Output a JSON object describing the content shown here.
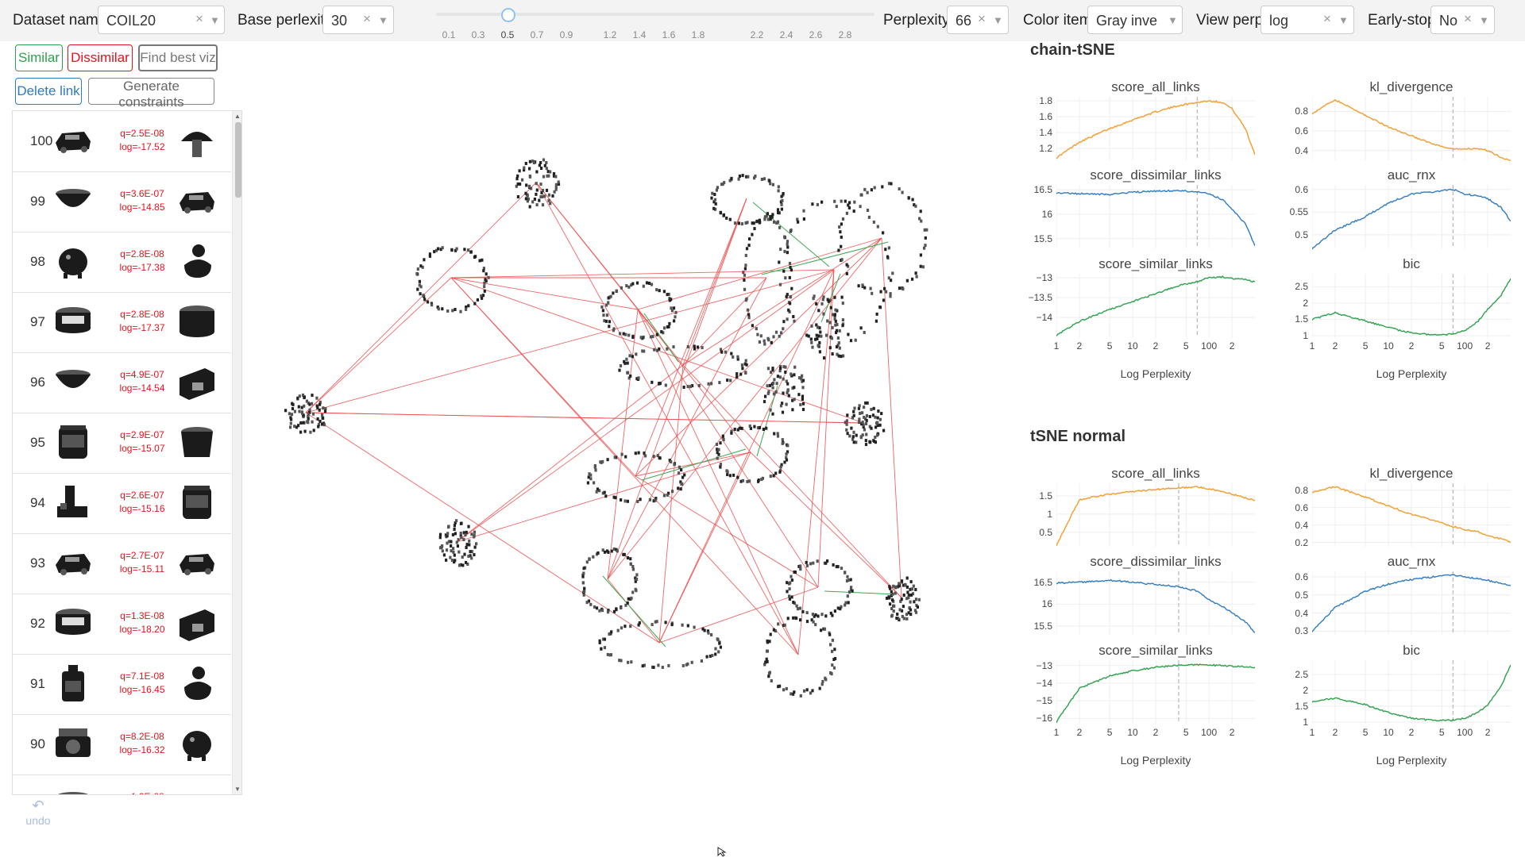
{
  "topbar": {
    "dataset_label": "Dataset name",
    "dataset_value": "COIL20",
    "base_perplexity_label": "Base perlexity",
    "base_perplexity_value": "30",
    "slider_ticks": [
      "0.1",
      "0.3",
      "0.5",
      "0.7",
      "0.9",
      "1.2",
      "1.4",
      "1.6",
      "1.8",
      "2.2",
      "2.4",
      "2.6",
      "2.8"
    ],
    "slider_value": 0.5,
    "perplexity_label": "Perplexity",
    "perplexity_value": "66",
    "color_item_label": "Color item",
    "color_item_value": "Gray invert",
    "view_perp_label": "View perp",
    "view_perp_value": "log",
    "early_stop_label": "Early-stop",
    "early_stop_value": "No",
    "clear_glyph": "×",
    "dropdown_glyph": "▼"
  },
  "buttons": {
    "similar": "Similar",
    "dissimilar": "Dissimilar",
    "find_best": "Find best viz",
    "delete_link": "Delete link",
    "generate": "Generate constraints"
  },
  "links": [
    {
      "id": "100",
      "q": "q=2.5E-08",
      "log": "log=-17.52",
      "left": "car-icon",
      "right": "mushroom-icon"
    },
    {
      "id": "99",
      "q": "q=3.6E-07",
      "log": "log=-14.85",
      "left": "bowl-icon",
      "right": "car-icon"
    },
    {
      "id": "98",
      "q": "q=2.8E-08",
      "log": "log=-17.38",
      "left": "piggy-bank-icon",
      "right": "duck-icon"
    },
    {
      "id": "97",
      "q": "q=2.8E-08",
      "log": "log=-17.37",
      "left": "cream-jar-icon",
      "right": "pot-icon"
    },
    {
      "id": "96",
      "q": "q=4.9E-07",
      "log": "log=-14.54",
      "left": "bowl-icon",
      "right": "box-icon"
    },
    {
      "id": "95",
      "q": "q=2.9E-07",
      "log": "log=-15.07",
      "left": "jar-icon",
      "right": "cup-icon"
    },
    {
      "id": "94",
      "q": "q=2.6E-07",
      "log": "log=-15.16",
      "left": "block-icon",
      "right": "jar-icon"
    },
    {
      "id": "93",
      "q": "q=2.7E-07",
      "log": "log=-15.11",
      "left": "car-icon",
      "right": "car-icon"
    },
    {
      "id": "92",
      "q": "q=1.3E-08",
      "log": "log=-18.20",
      "left": "cream-jar-icon",
      "right": "box-icon"
    },
    {
      "id": "91",
      "q": "q=7.1E-08",
      "log": "log=-16.45",
      "left": "bottle-icon",
      "right": "duck-icon"
    },
    {
      "id": "90",
      "q": "q=8.2E-08",
      "log": "log=-16.32",
      "left": "lens-icon",
      "right": "piggy-bank-icon"
    },
    {
      "id": "",
      "q": "q=1.3E-08",
      "log": "",
      "left": "bowl-icon",
      "right": "car-icon"
    }
  ],
  "undo_label": "undo",
  "sections": [
    {
      "title": "chain-tSNE",
      "xlabel": "Log Perplexity",
      "plots": [
        {
          "title": "score_all_links",
          "color": "#f39c2c",
          "yticks": [
            "1.8",
            "1.6",
            "1.4",
            "1.2"
          ],
          "ytick_values": [
            1.8,
            1.6,
            1.4,
            1.2
          ],
          "ylim": [
            1.05,
            1.85
          ],
          "points": [
            [
              1,
              1.08
            ],
            [
              2,
              1.28
            ],
            [
              5,
              1.45
            ],
            [
              10,
              1.56
            ],
            [
              20,
              1.66
            ],
            [
              40,
              1.74
            ],
            [
              70,
              1.78
            ],
            [
              100,
              1.8
            ],
            [
              150,
              1.78
            ],
            [
              200,
              1.7
            ],
            [
              300,
              1.45
            ],
            [
              400,
              1.12
            ]
          ],
          "vline": 70
        },
        {
          "title": "kl_divergence",
          "color": "#f39c2c",
          "yticks": [
            "0.8",
            "0.6",
            "0.4"
          ],
          "ytick_values": [
            0.8,
            0.6,
            0.4
          ],
          "ylim": [
            0.3,
            0.95
          ],
          "points": [
            [
              1,
              0.78
            ],
            [
              2,
              0.92
            ],
            [
              5,
              0.76
            ],
            [
              10,
              0.64
            ],
            [
              20,
              0.55
            ],
            [
              40,
              0.46
            ],
            [
              70,
              0.41
            ],
            [
              100,
              0.42
            ],
            [
              150,
              0.42
            ],
            [
              200,
              0.4
            ],
            [
              300,
              0.33
            ],
            [
              400,
              0.3
            ]
          ],
          "vline": 70
        },
        {
          "title": "score_dissimilar_links",
          "color": "#2f7bbf",
          "yticks": [
            "16.5",
            "16",
            "15.5"
          ],
          "ytick_values": [
            16.5,
            16,
            15.5
          ],
          "ylim": [
            15.3,
            16.6
          ],
          "points": [
            [
              1,
              16.44
            ],
            [
              2,
              16.42
            ],
            [
              5,
              16.4
            ],
            [
              10,
              16.45
            ],
            [
              20,
              16.47
            ],
            [
              40,
              16.48
            ],
            [
              70,
              16.46
            ],
            [
              100,
              16.42
            ],
            [
              150,
              16.3
            ],
            [
              200,
              16.1
            ],
            [
              300,
              15.8
            ],
            [
              400,
              15.35
            ]
          ],
          "vline": 70
        },
        {
          "title": "auc_rnx",
          "color": "#2f7bbf",
          "yticks": [
            "0.6",
            "0.55",
            "0.5"
          ],
          "ytick_values": [
            0.6,
            0.55,
            0.5
          ],
          "ylim": [
            0.47,
            0.61
          ],
          "points": [
            [
              1,
              0.47
            ],
            [
              2,
              0.51
            ],
            [
              5,
              0.54
            ],
            [
              10,
              0.57
            ],
            [
              20,
              0.59
            ],
            [
              40,
              0.595
            ],
            [
              70,
              0.6
            ],
            [
              100,
              0.59
            ],
            [
              150,
              0.585
            ],
            [
              200,
              0.58
            ],
            [
              300,
              0.56
            ],
            [
              400,
              0.53
            ]
          ],
          "vline": 70
        },
        {
          "title": "score_similar_links",
          "color": "#2ca04c",
          "yticks": [
            "−13",
            "−13.5",
            "−14"
          ],
          "ytick_values": [
            -13,
            -13.5,
            -14
          ],
          "ylim": [
            -14.5,
            -12.9
          ],
          "points": [
            [
              1,
              -14.45
            ],
            [
              2,
              -14.1
            ],
            [
              5,
              -13.8
            ],
            [
              10,
              -13.6
            ],
            [
              20,
              -13.4
            ],
            [
              40,
              -13.2
            ],
            [
              70,
              -13.1
            ],
            [
              100,
              -13.0
            ],
            [
              150,
              -12.98
            ],
            [
              200,
              -13.02
            ],
            [
              300,
              -13.05
            ],
            [
              400,
              -13.1
            ]
          ],
          "vline": 70
        },
        {
          "title": "bic",
          "color": "#2ca04c",
          "yticks": [
            "2.5",
            "2",
            "1.5",
            "1"
          ],
          "ytick_values": [
            2.5,
            2,
            1.5,
            1
          ],
          "ylim": [
            0.95,
            2.9
          ],
          "points": [
            [
              1,
              1.5
            ],
            [
              2,
              1.7
            ],
            [
              5,
              1.45
            ],
            [
              10,
              1.25
            ],
            [
              20,
              1.08
            ],
            [
              40,
              1.02
            ],
            [
              70,
              1.05
            ],
            [
              100,
              1.15
            ],
            [
              150,
              1.45
            ],
            [
              200,
              1.8
            ],
            [
              300,
              2.25
            ],
            [
              400,
              2.75
            ]
          ],
          "vline": 70
        }
      ]
    },
    {
      "title": "tSNE normal",
      "xlabel": "Log Perplexity",
      "plots": [
        {
          "title": "score_all_links",
          "color": "#f39c2c",
          "yticks": [
            "1.5",
            "1",
            "0.5"
          ],
          "ytick_values": [
            1.5,
            1,
            0.5
          ],
          "ylim": [
            0.1,
            1.85
          ],
          "points": [
            [
              1,
              0.15
            ],
            [
              2,
              1.4
            ],
            [
              5,
              1.55
            ],
            [
              10,
              1.62
            ],
            [
              20,
              1.68
            ],
            [
              40,
              1.72
            ],
            [
              70,
              1.74
            ],
            [
              100,
              1.7
            ],
            [
              150,
              1.62
            ],
            [
              200,
              1.55
            ],
            [
              300,
              1.45
            ],
            [
              400,
              1.38
            ]
          ],
          "vline": 40
        },
        {
          "title": "kl_divergence",
          "color": "#f39c2c",
          "yticks": [
            "0.8",
            "0.6",
            "0.4",
            "0.2"
          ],
          "ytick_values": [
            0.8,
            0.6,
            0.4,
            0.2
          ],
          "ylim": [
            0.15,
            0.88
          ],
          "points": [
            [
              1,
              0.78
            ],
            [
              2,
              0.84
            ],
            [
              5,
              0.72
            ],
            [
              10,
              0.62
            ],
            [
              20,
              0.52
            ],
            [
              40,
              0.45
            ],
            [
              70,
              0.38
            ],
            [
              100,
              0.35
            ],
            [
              150,
              0.32
            ],
            [
              200,
              0.28
            ],
            [
              300,
              0.24
            ],
            [
              400,
              0.2
            ]
          ],
          "vline": 70
        },
        {
          "title": "score_dissimilar_links",
          "color": "#2f7bbf",
          "yticks": [
            "16.5",
            "16",
            "15.5"
          ],
          "ytick_values": [
            16.5,
            16,
            15.5
          ],
          "ylim": [
            15.3,
            16.75
          ],
          "points": [
            [
              1,
              16.48
            ],
            [
              2,
              16.5
            ],
            [
              5,
              16.55
            ],
            [
              10,
              16.5
            ],
            [
              20,
              16.45
            ],
            [
              40,
              16.4
            ],
            [
              70,
              16.3
            ],
            [
              100,
              16.1
            ],
            [
              150,
              15.95
            ],
            [
              200,
              15.8
            ],
            [
              300,
              15.6
            ],
            [
              400,
              15.35
            ]
          ],
          "vline": 40
        },
        {
          "title": "auc_rnx",
          "color": "#2f7bbf",
          "yticks": [
            "0.6",
            "0.5",
            "0.4",
            "0.3"
          ],
          "ytick_values": [
            0.6,
            0.5,
            0.4,
            0.3
          ],
          "ylim": [
            0.28,
            0.63
          ],
          "points": [
            [
              1,
              0.3
            ],
            [
              2,
              0.43
            ],
            [
              5,
              0.52
            ],
            [
              10,
              0.56
            ],
            [
              20,
              0.585
            ],
            [
              40,
              0.6
            ],
            [
              70,
              0.61
            ],
            [
              100,
              0.6
            ],
            [
              150,
              0.59
            ],
            [
              200,
              0.58
            ],
            [
              300,
              0.565
            ],
            [
              400,
              0.55
            ]
          ],
          "vline": 70
        },
        {
          "title": "score_similar_links",
          "color": "#2ca04c",
          "yticks": [
            "−13",
            "−14",
            "−15",
            "−16"
          ],
          "ytick_values": [
            -13,
            -14,
            -15,
            -16
          ],
          "ylim": [
            -16.3,
            -12.7
          ],
          "points": [
            [
              1,
              -16.2
            ],
            [
              2,
              -14.3
            ],
            [
              5,
              -13.6
            ],
            [
              10,
              -13.3
            ],
            [
              20,
              -13.1
            ],
            [
              40,
              -13.0
            ],
            [
              70,
              -12.95
            ],
            [
              100,
              -12.98
            ],
            [
              150,
              -13.0
            ],
            [
              200,
              -13.05
            ],
            [
              300,
              -13.08
            ],
            [
              400,
              -13.1
            ]
          ],
          "vline": 40
        },
        {
          "title": "bic",
          "color": "#2ca04c",
          "yticks": [
            "2.5",
            "2",
            "1.5",
            "1"
          ],
          "ytick_values": [
            2.5,
            2,
            1.5,
            1
          ],
          "ylim": [
            0.95,
            2.95
          ],
          "points": [
            [
              1,
              1.65
            ],
            [
              2,
              1.75
            ],
            [
              5,
              1.55
            ],
            [
              10,
              1.3
            ],
            [
              20,
              1.12
            ],
            [
              40,
              1.05
            ],
            [
              70,
              1.06
            ],
            [
              100,
              1.12
            ],
            [
              150,
              1.3
            ],
            [
              200,
              1.55
            ],
            [
              300,
              2.15
            ],
            [
              400,
              2.8
            ]
          ],
          "vline": 70
        }
      ]
    }
  ],
  "xticks": [
    "1",
    "2",
    "5",
    "10",
    "2",
    "5",
    "100",
    "2"
  ],
  "xtick_values": [
    1,
    2,
    5,
    10,
    20,
    50,
    100,
    200
  ]
}
